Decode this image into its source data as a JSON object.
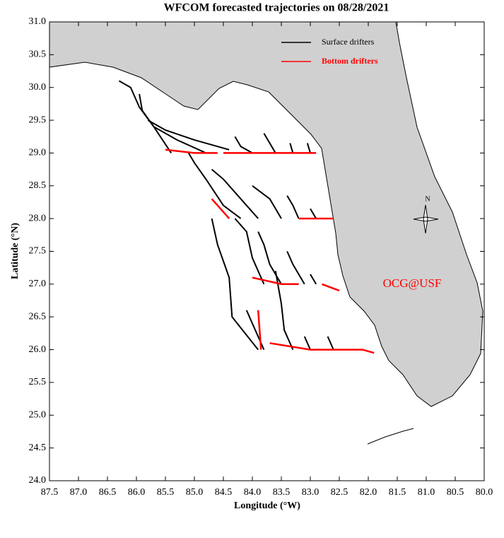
{
  "chart_data": {
    "type": "trajectory",
    "title": "WFCOM forecasted trajectories on 08/28/2021",
    "xlabel": "Longitude (°W)",
    "ylabel": "Latitude (°N)",
    "annotation": "OCG@USF",
    "compass": "N",
    "legend": "upper right",
    "xlim": [
      87.5,
      80.0
    ],
    "ylim": [
      24.0,
      31.0
    ],
    "xticks": [
      87.5,
      {
        "value": 87,
        "label": "87.0"
      },
      86.5,
      {
        "value": 86,
        "label": "86.0"
      },
      85.5,
      {
        "value": 85,
        "label": "85.0"
      },
      84.5,
      {
        "value": 84,
        "label": "84.0"
      },
      83.5,
      {
        "value": 83,
        "label": "83.0"
      },
      82.5,
      {
        "value": 82,
        "label": "82.0"
      },
      81.5,
      {
        "value": 81,
        "label": "81.0"
      },
      80.5,
      {
        "value": 80,
        "label": "80.0"
      }
    ],
    "yticks": [
      {
        "value": 24,
        "label": "24.0"
      },
      24.5,
      {
        "value": 25,
        "label": "25.0"
      },
      25.5,
      {
        "value": 26,
        "label": "26.0"
      },
      26.5,
      {
        "value": 27,
        "label": "27.0"
      },
      27.5,
      {
        "value": 28,
        "label": "28.0"
      },
      28.5,
      {
        "value": 29,
        "label": "29.0"
      },
      29.5,
      {
        "value": 30,
        "label": "30.0"
      },
      30.5,
      {
        "value": 31,
        "label": "31.0"
      }
    ],
    "series": [
      {
        "name": "Surface drifters",
        "color": "#000000",
        "tracks": [
          {
            "x": [
              85.4,
              85.7,
              85.95,
              86.1,
              86.3
            ],
            "y": [
              29.0,
              29.4,
              29.7,
              30.0,
              30.1
            ]
          },
          {
            "x": [
              84.8,
              85.3,
              85.7,
              85.9,
              85.95
            ],
            "y": [
              29.0,
              29.2,
              29.4,
              29.65,
              29.9
            ]
          },
          {
            "x": [
              84.4,
              85.0,
              85.5,
              85.8
            ],
            "y": [
              29.05,
              29.2,
              29.35,
              29.5
            ]
          },
          {
            "x": [
              84.0,
              84.2,
              84.3
            ],
            "y": [
              29.0,
              29.1,
              29.25
            ]
          },
          {
            "x": [
              83.6,
              83.7,
              83.8
            ],
            "y": [
              29.0,
              29.15,
              29.3
            ]
          },
          {
            "x": [
              83.3,
              83.35
            ],
            "y": [
              29.0,
              29.15
            ]
          },
          {
            "x": [
              83.0,
              83.05
            ],
            "y": [
              29.0,
              29.15
            ]
          },
          {
            "x": [
              84.2,
              84.5,
              84.8,
              85.0,
              85.1
            ],
            "y": [
              28.0,
              28.2,
              28.6,
              28.85,
              29.0
            ]
          },
          {
            "x": [
              83.9,
              84.2,
              84.5,
              84.7
            ],
            "y": [
              28.0,
              28.3,
              28.6,
              28.75
            ]
          },
          {
            "x": [
              83.5,
              83.7,
              84.0
            ],
            "y": [
              28.0,
              28.3,
              28.5
            ]
          },
          {
            "x": [
              83.2,
              83.3,
              83.4
            ],
            "y": [
              28.0,
              28.2,
              28.35
            ]
          },
          {
            "x": [
              82.9,
              83.0
            ],
            "y": [
              28.0,
              28.15
            ]
          },
          {
            "x": [
              83.8,
              84.0,
              84.1,
              84.3
            ],
            "y": [
              27.0,
              27.4,
              27.8,
              28.0
            ]
          },
          {
            "x": [
              83.5,
              83.7,
              83.8,
              83.9
            ],
            "y": [
              27.0,
              27.3,
              27.6,
              27.8
            ]
          },
          {
            "x": [
              83.1,
              83.3,
              83.4
            ],
            "y": [
              27.0,
              27.3,
              27.5
            ]
          },
          {
            "x": [
              82.9,
              83.0
            ],
            "y": [
              27.0,
              27.15
            ]
          },
          {
            "x": [
              83.9,
              84.35,
              84.4,
              84.6,
              84.7
            ],
            "y": [
              26.0,
              26.5,
              27.1,
              27.6,
              28.0
            ]
          },
          {
            "x": [
              83.8,
              84.0,
              84.1
            ],
            "y": [
              26.0,
              26.4,
              26.6
            ]
          },
          {
            "x": [
              83.3,
              83.45,
              83.5,
              83.6
            ],
            "y": [
              26.0,
              26.3,
              26.7,
              27.2
            ]
          },
          {
            "x": [
              83.0,
              83.1
            ],
            "y": [
              26.0,
              26.2
            ]
          },
          {
            "x": [
              82.6,
              82.7
            ],
            "y": [
              26.0,
              26.2
            ]
          }
        ]
      },
      {
        "name": "Bottom drifters",
        "color": "#ff0000",
        "tracks": [
          {
            "x": [
              85.5,
              85.0,
              84.6
            ],
            "y": [
              29.05,
              29.0,
              29.0
            ]
          },
          {
            "x": [
              84.5,
              84.0,
              83.5,
              82.9
            ],
            "y": [
              29.0,
              29.0,
              29.0,
              29.0
            ]
          },
          {
            "x": [
              84.7,
              84.4
            ],
            "y": [
              28.3,
              28.0
            ]
          },
          {
            "x": [
              83.2,
              82.6
            ],
            "y": [
              28.0,
              28.0
            ]
          },
          {
            "x": [
              84.0,
              83.5,
              83.2
            ],
            "y": [
              27.1,
              27.0,
              27.0
            ]
          },
          {
            "x": [
              82.8,
              82.5
            ],
            "y": [
              27.0,
              26.9
            ]
          },
          {
            "x": [
              83.9,
              83.85
            ],
            "y": [
              26.6,
              26.0
            ]
          },
          {
            "x": [
              83.7,
              83.0,
              82.1,
              81.9
            ],
            "y": [
              26.1,
              26.0,
              26.0,
              25.95
            ]
          }
        ]
      }
    ]
  }
}
